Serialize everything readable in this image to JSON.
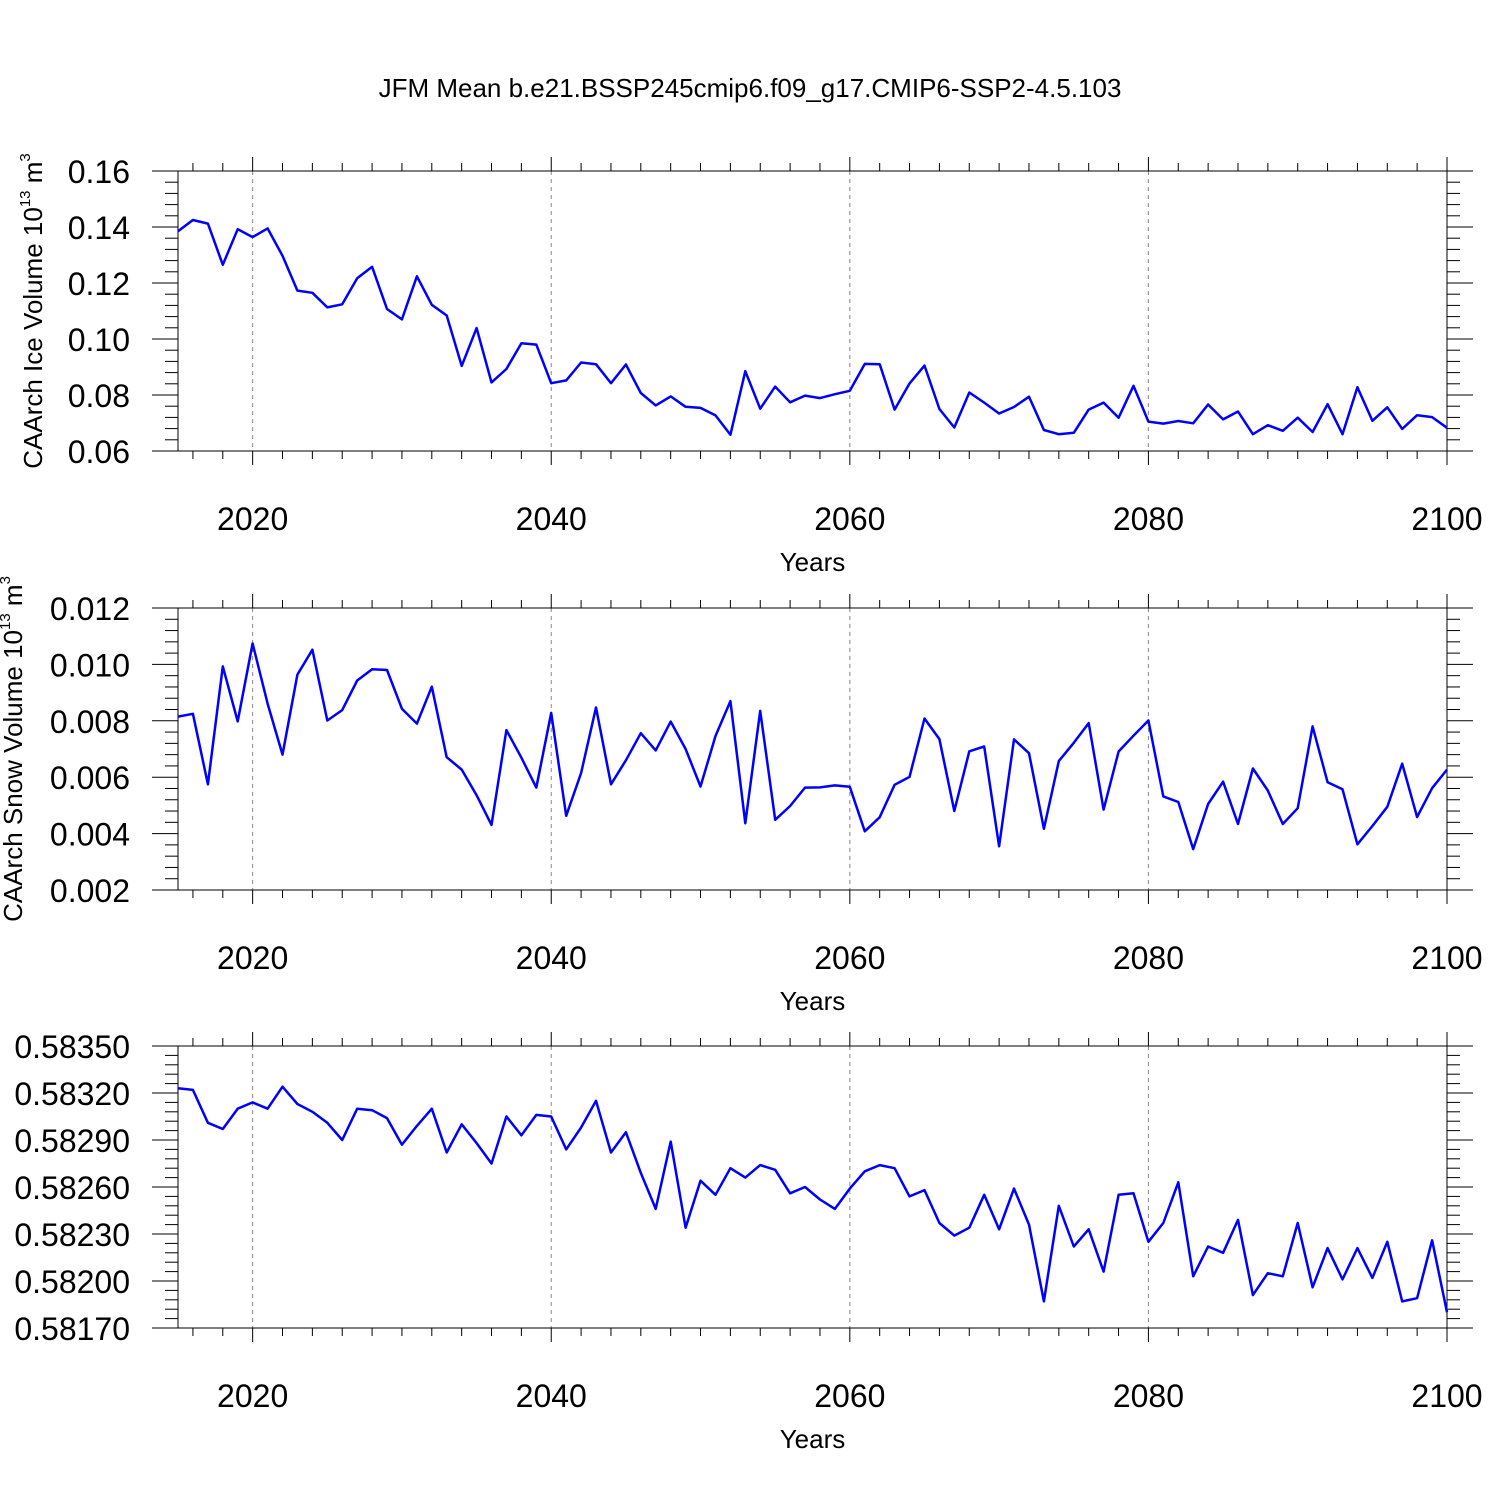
{
  "title": "JFM Mean b.e21.BSSP245cmip6.f09_g17.CMIP6-SSP2-4.5.103",
  "colors": {
    "line": "#0000ff",
    "grid": "#888888"
  },
  "chart_data": [
    {
      "type": "line",
      "xlabel": "Years",
      "ylabel": {
        "text": "CAArch Ice Volume 10",
        "exp1": "13",
        "unit": " m",
        "exp2": "3"
      },
      "xlim": [
        2015,
        2100
      ],
      "ylim": [
        0.06,
        0.16
      ],
      "xticks": [
        "2020",
        "2040",
        "2060",
        "2080",
        "2100"
      ],
      "yticks": [
        "0.06",
        "0.08",
        "0.10",
        "0.12",
        "0.14",
        "0.16"
      ],
      "grid": "vertical dashed at major x ticks",
      "x": [
        2015,
        2016,
        2017,
        2018,
        2019,
        2020,
        2021,
        2022,
        2023,
        2024,
        2025,
        2026,
        2027,
        2028,
        2029,
        2030,
        2031,
        2032,
        2033,
        2034,
        2035,
        2036,
        2037,
        2038,
        2039,
        2040,
        2041,
        2042,
        2043,
        2044,
        2045,
        2046,
        2047,
        2048,
        2049,
        2050,
        2051,
        2052,
        2053,
        2054,
        2055,
        2056,
        2057,
        2058,
        2059,
        2060,
        2061,
        2062,
        2063,
        2064,
        2065,
        2066,
        2067,
        2068,
        2069,
        2070,
        2071,
        2072,
        2073,
        2074,
        2075,
        2076,
        2077,
        2078,
        2079,
        2080,
        2081,
        2082,
        2083,
        2084,
        2085,
        2086,
        2087,
        2088,
        2089,
        2090,
        2091,
        2092,
        2093,
        2094,
        2095,
        2096,
        2097,
        2098,
        2099,
        2100
      ],
      "values": [
        0.1385,
        0.1425,
        0.1412,
        0.1265,
        0.1392,
        0.1364,
        0.1395,
        0.1297,
        0.1173,
        0.1165,
        0.1113,
        0.1124,
        0.1217,
        0.1258,
        0.1107,
        0.107,
        0.1224,
        0.1122,
        0.1084,
        0.0904,
        0.1039,
        0.0845,
        0.0893,
        0.0985,
        0.098,
        0.0842,
        0.0852,
        0.0916,
        0.091,
        0.0842,
        0.0909,
        0.0807,
        0.0763,
        0.0795,
        0.0758,
        0.0754,
        0.0727,
        0.0658,
        0.0885,
        0.0751,
        0.083,
        0.0774,
        0.0798,
        0.0789,
        0.0803,
        0.0815,
        0.0911,
        0.091,
        0.0748,
        0.0841,
        0.0905,
        0.075,
        0.0684,
        0.0809,
        0.0773,
        0.0734,
        0.0757,
        0.0794,
        0.0675,
        0.066,
        0.0665,
        0.0748,
        0.0773,
        0.0719,
        0.0833,
        0.0705,
        0.0698,
        0.0707,
        0.0699,
        0.0766,
        0.0713,
        0.0741,
        0.066,
        0.0692,
        0.0672,
        0.0719,
        0.0668,
        0.0767,
        0.066,
        0.0828,
        0.0708,
        0.0756,
        0.0679,
        0.0728,
        0.0721,
        0.0683
      ]
    },
    {
      "type": "line",
      "xlabel": "Years",
      "ylabel": {
        "text": "CAArch Snow Volume 10",
        "exp1": "13",
        "unit": " m",
        "exp2": "3"
      },
      "xlim": [
        2015,
        2100
      ],
      "ylim": [
        0.002,
        0.012
      ],
      "xticks": [
        "2020",
        "2040",
        "2060",
        "2080",
        "2100"
      ],
      "yticks": [
        "0.002",
        "0.004",
        "0.006",
        "0.008",
        "0.010",
        "0.012"
      ],
      "grid": "vertical dashed at major x ticks",
      "x": [
        2015,
        2016,
        2017,
        2018,
        2019,
        2020,
        2021,
        2022,
        2023,
        2024,
        2025,
        2026,
        2027,
        2028,
        2029,
        2030,
        2031,
        2032,
        2033,
        2034,
        2035,
        2036,
        2037,
        2038,
        2039,
        2040,
        2041,
        2042,
        2043,
        2044,
        2045,
        2046,
        2047,
        2048,
        2049,
        2050,
        2051,
        2052,
        2053,
        2054,
        2055,
        2056,
        2057,
        2058,
        2059,
        2060,
        2061,
        2062,
        2063,
        2064,
        2065,
        2066,
        2067,
        2068,
        2069,
        2070,
        2071,
        2072,
        2073,
        2074,
        2075,
        2076,
        2077,
        2078,
        2079,
        2080,
        2081,
        2082,
        2083,
        2084,
        2085,
        2086,
        2087,
        2088,
        2089,
        2090,
        2091,
        2092,
        2093,
        2094,
        2095,
        2096,
        2097,
        2098,
        2099,
        2100
      ],
      "values": [
        0.00815,
        0.00825,
        0.00575,
        0.00993,
        0.00798,
        0.01074,
        0.00861,
        0.0068,
        0.00964,
        0.01052,
        0.00801,
        0.00838,
        0.00943,
        0.00983,
        0.0098,
        0.00843,
        0.0079,
        0.00921,
        0.00671,
        0.00627,
        0.00536,
        0.00431,
        0.00767,
        0.00669,
        0.00563,
        0.00828,
        0.00463,
        0.00615,
        0.00847,
        0.00575,
        0.0066,
        0.00756,
        0.00695,
        0.00797,
        0.007,
        0.00567,
        0.00746,
        0.0087,
        0.00437,
        0.00835,
        0.00449,
        0.00498,
        0.00563,
        0.00564,
        0.00571,
        0.00566,
        0.00408,
        0.00458,
        0.00573,
        0.00601,
        0.00808,
        0.00735,
        0.0048,
        0.00692,
        0.00709,
        0.00355,
        0.00734,
        0.00685,
        0.00417,
        0.00657,
        0.00722,
        0.00792,
        0.00485,
        0.00691,
        0.00747,
        0.00801,
        0.00532,
        0.00512,
        0.00345,
        0.00505,
        0.00584,
        0.00434,
        0.00631,
        0.00553,
        0.00434,
        0.0049,
        0.0078,
        0.00582,
        0.00557,
        0.00362,
        0.00427,
        0.00495,
        0.00648,
        0.00459,
        0.00561,
        0.00627
      ]
    },
    {
      "type": "line",
      "xlabel": "Years",
      "ylabel": null,
      "xlim": [
        2015,
        2100
      ],
      "ylim": [
        0.5817,
        0.5835
      ],
      "xticks": [
        "2020",
        "2040",
        "2060",
        "2080",
        "2100"
      ],
      "yticks": [
        "0.58170",
        "0.58200",
        "0.58230",
        "0.58260",
        "0.58290",
        "0.58320",
        "0.58350"
      ],
      "grid": "vertical dashed at major x ticks",
      "x": [
        2015,
        2016,
        2017,
        2018,
        2019,
        2020,
        2021,
        2022,
        2023,
        2024,
        2025,
        2026,
        2027,
        2028,
        2029,
        2030,
        2031,
        2032,
        2033,
        2034,
        2035,
        2036,
        2037,
        2038,
        2039,
        2040,
        2041,
        2042,
        2043,
        2044,
        2045,
        2046,
        2047,
        2048,
        2049,
        2050,
        2051,
        2052,
        2053,
        2054,
        2055,
        2056,
        2057,
        2058,
        2059,
        2060,
        2061,
        2062,
        2063,
        2064,
        2065,
        2066,
        2067,
        2068,
        2069,
        2070,
        2071,
        2072,
        2073,
        2074,
        2075,
        2076,
        2077,
        2078,
        2079,
        2080,
        2081,
        2082,
        2083,
        2084,
        2085,
        2086,
        2087,
        2088,
        2089,
        2090,
        2091,
        2092,
        2093,
        2094,
        2095,
        2096,
        2097,
        2098,
        2099,
        2100
      ],
      "values": [
        0.58323,
        0.58322,
        0.58301,
        0.58297,
        0.5831,
        0.58314,
        0.5831,
        0.58324,
        0.58313,
        0.58308,
        0.58301,
        0.5829,
        0.5831,
        0.58309,
        0.58304,
        0.58287,
        0.58299,
        0.5831,
        0.58282,
        0.583,
        0.58288,
        0.58275,
        0.58305,
        0.58293,
        0.58306,
        0.58305,
        0.58284,
        0.58298,
        0.58315,
        0.58282,
        0.58295,
        0.58269,
        0.58246,
        0.58289,
        0.58234,
        0.58264,
        0.58255,
        0.58272,
        0.58266,
        0.58274,
        0.58271,
        0.58256,
        0.5826,
        0.58252,
        0.58246,
        0.58259,
        0.5827,
        0.58274,
        0.58272,
        0.58254,
        0.58258,
        0.58237,
        0.58229,
        0.58234,
        0.58255,
        0.58233,
        0.58259,
        0.58236,
        0.58187,
        0.58248,
        0.58222,
        0.58233,
        0.58206,
        0.58255,
        0.58256,
        0.58225,
        0.58237,
        0.58263,
        0.58203,
        0.58222,
        0.58218,
        0.58239,
        0.58191,
        0.58205,
        0.58203,
        0.58237,
        0.58196,
        0.58221,
        0.58201,
        0.58221,
        0.58202,
        0.58225,
        0.58187,
        0.58189,
        0.58226,
        0.5818
      ]
    }
  ]
}
